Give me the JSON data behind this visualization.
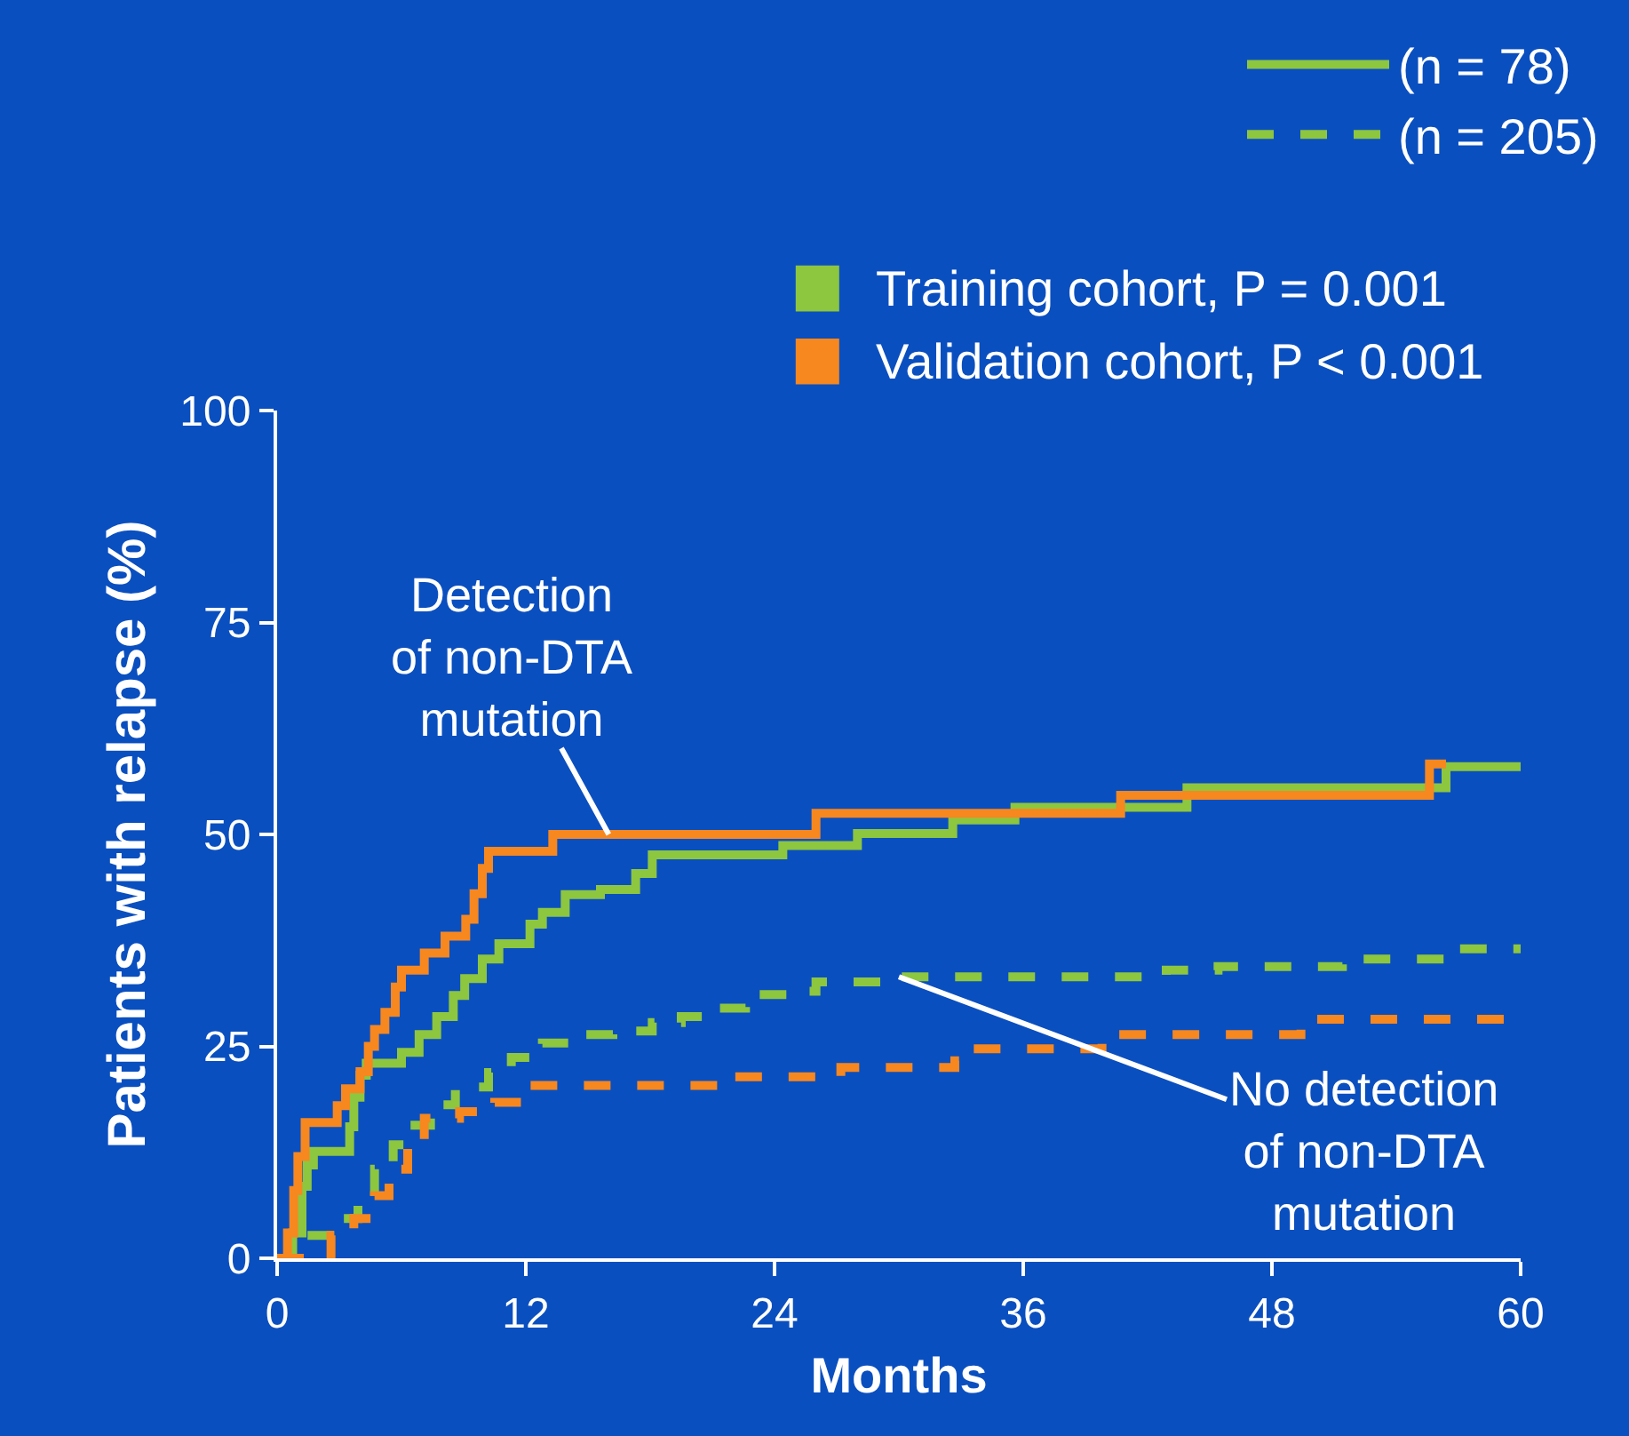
{
  "chart_data": {
    "type": "step",
    "xlabel": "Months",
    "ylabel": "Patients with relapse (%)",
    "xlim": [
      0,
      60
    ],
    "xticks": [
      0,
      12,
      24,
      36,
      48,
      60
    ],
    "ylim": [
      0,
      100
    ],
    "yticks": [
      0,
      25,
      50,
      75,
      100
    ],
    "grid": false,
    "legend": "top right",
    "series": [
      {
        "name": "(n = 78)",
        "color": "#8dc63f",
        "line_style": "solid",
        "x": [
          0,
          0.75,
          1.2,
          1.45,
          1.75,
          3.5,
          3.7,
          4.0,
          4.3,
          6.0,
          6.85,
          7.7,
          8.5,
          9.05,
          9.9,
          10.7,
          12.2,
          12.8,
          13.9,
          15.6,
          17.3,
          18.1,
          24.4,
          28,
          32.6,
          35.6,
          43.9,
          56.4,
          60
        ],
        "values": [
          0,
          3,
          8.5,
          11,
          12.6,
          15.5,
          19,
          21.6,
          23,
          24.3,
          26.4,
          28.5,
          31,
          33,
          35.3,
          37.1,
          39.4,
          40.8,
          42.9,
          43.5,
          45.4,
          47.6,
          48.7,
          50.1,
          51.7,
          53.2,
          55.5,
          58,
          58
        ]
      },
      {
        "name": "(n = 205)",
        "color": "#8dc63f",
        "line_style": "dashed",
        "x": [
          0,
          1.45,
          2.9,
          3.9,
          4.7,
          5.6,
          6.4,
          7.4,
          8.6,
          10.2,
          11.3,
          12.8,
          14.5,
          16.2,
          18.1,
          19.5,
          21.2,
          22.6,
          24.6,
          26,
          30,
          42.9,
          45.4,
          51.4,
          56.4,
          60
        ],
        "values": [
          0,
          2.7,
          4.7,
          7.2,
          10.5,
          13.4,
          15.7,
          18.1,
          20.2,
          21.9,
          23.7,
          25.4,
          26.4,
          26.8,
          27.8,
          28.5,
          29.5,
          31.1,
          31.5,
          32.6,
          33.2,
          34,
          34.4,
          35.3,
          36.5,
          36.5
        ]
      },
      {
        "color": "#f7871f",
        "line_style": "solid",
        "x": [
          0,
          0.5,
          0.8,
          1.0,
          1.35,
          2.9,
          3.3,
          4.0,
          4.4,
          4.7,
          5.2,
          5.7,
          6.0,
          7.1,
          8.1,
          9.1,
          9.5,
          9.9,
          10.2,
          13.3,
          26,
          40.7,
          55.6,
          56.4
        ],
        "values": [
          0,
          3,
          8,
          12,
          16,
          18,
          20,
          22,
          25,
          27,
          29,
          32,
          34,
          36,
          38,
          40,
          43,
          46,
          48,
          50,
          52.5,
          54.6,
          58.3,
          58.3
        ]
      },
      {
        "color": "#f7871f",
        "line_style": "dashed",
        "x": [
          0,
          2.6,
          3.7,
          4.7,
          5.4,
          6.3,
          7.1,
          8.8,
          10.5,
          11.9,
          21.7,
          27.2,
          32.7,
          33.1,
          39.8,
          49.4,
          60
        ],
        "values": [
          0,
          2.7,
          4.7,
          7.4,
          10.5,
          13.4,
          16.5,
          17.3,
          18.4,
          20.4,
          21.4,
          22.5,
          23.3,
          24.7,
          26.4,
          28.2,
          28.2
        ]
      }
    ],
    "annotations": [
      {
        "text": "Detection of non-DTA mutation",
        "x": 16,
        "y": 50
      },
      {
        "text": "No detection of non-DTA mutation",
        "x": 30,
        "y": 33.2
      },
      "Training cohort, P = 0.001",
      "Validation cohort, P < 0.001"
    ]
  }
}
